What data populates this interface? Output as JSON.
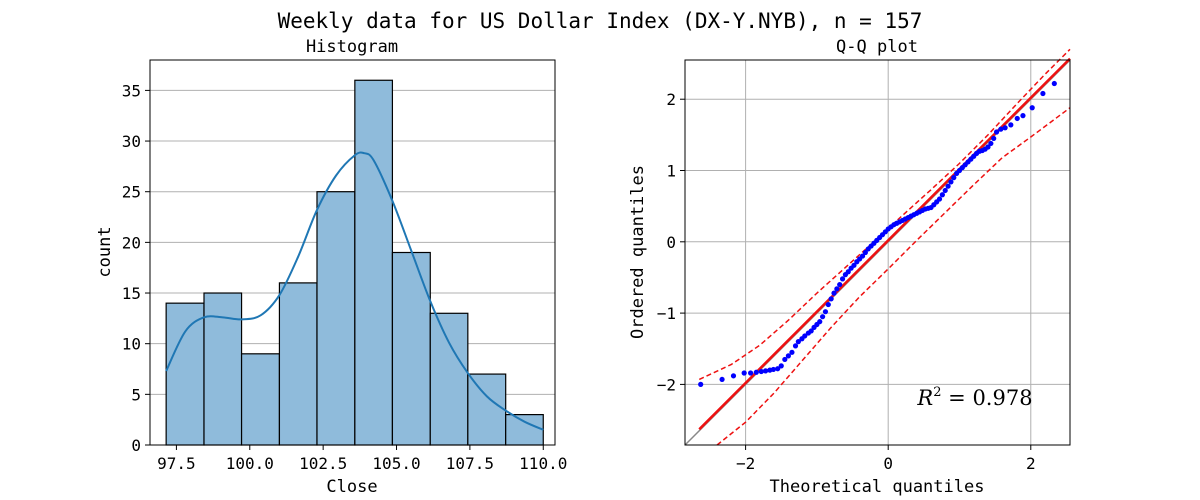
{
  "figure": {
    "title": "Weekly data for US Dollar Index (DX-Y.NYB), n = 157"
  },
  "chart_data": [
    {
      "type": "bar",
      "title": "Histogram",
      "xlabel": "Close",
      "ylabel": "count",
      "bin_edges": [
        97.15,
        98.44,
        99.72,
        101.01,
        102.29,
        103.58,
        104.86,
        106.15,
        107.43,
        108.72,
        110.0
      ],
      "values": [
        14,
        15,
        9,
        16,
        25,
        36,
        19,
        13,
        7,
        3
      ],
      "bar_color": "#8fbbdb",
      "kde_color": "#1f77b4",
      "kde": {
        "x": [
          97.15,
          97.8,
          98.44,
          99.08,
          99.72,
          100.37,
          101.01,
          101.65,
          102.29,
          102.94,
          103.58,
          103.9,
          104.22,
          104.86,
          105.5,
          106.15,
          106.79,
          107.43,
          108.08,
          108.72,
          109.36,
          110.0
        ],
        "y": [
          7.3,
          11.2,
          12.6,
          12.6,
          12.4,
          12.8,
          14.8,
          18.6,
          23.2,
          26.6,
          28.6,
          28.8,
          28.1,
          24.1,
          19.2,
          14.2,
          10.1,
          7.1,
          4.8,
          3.4,
          2.3,
          1.5
        ]
      },
      "xlim": [
        96.6,
        110.4
      ],
      "ylim": [
        0,
        38
      ],
      "xticks": [
        97.5,
        100.0,
        102.5,
        105.0,
        107.5,
        110.0
      ],
      "xtick_labels": [
        "97.5",
        "100.0",
        "102.5",
        "105.0",
        "107.5",
        "110.0"
      ],
      "yticks": [
        0,
        5,
        10,
        15,
        20,
        25,
        30,
        35
      ],
      "ytick_labels": [
        "0",
        "5",
        "10",
        "15",
        "20",
        "25",
        "30",
        "35"
      ],
      "grid": "y"
    },
    {
      "type": "scatter",
      "title": "Q-Q plot",
      "xlabel": "Theoretical quantiles",
      "ylabel": "Ordered quantiles",
      "xlim": [
        -2.85,
        2.55
      ],
      "ylim": [
        -2.85,
        2.55
      ],
      "xticks": [
        -2,
        0,
        2
      ],
      "xtick_labels": [
        "−2",
        "0",
        "2"
      ],
      "yticks": [
        -2,
        -1,
        0,
        1,
        2
      ],
      "ytick_labels": [
        "−2",
        "−1",
        "0",
        "1",
        "2"
      ],
      "grid": "both",
      "point_color": "#0000ff",
      "fit_color": "#ee1111",
      "band_color": "#ee1111",
      "identity_color": "#888888",
      "annotation": "R² = 0.978",
      "annotation_base": "R",
      "annotation_sup": "2",
      "annotation_value": " = 0.978",
      "fit_line": {
        "x": [
          -2.65,
          2.55
        ],
        "y": [
          -2.63,
          2.57
        ]
      },
      "band_upper": {
        "x": [
          -2.65,
          -2.2,
          -1.8,
          -1.4,
          -1.0,
          -0.6,
          -0.2,
          0.2,
          0.6,
          1.0,
          1.4,
          1.8,
          2.2,
          2.55
        ],
        "y": [
          -1.93,
          -1.72,
          -1.45,
          -1.1,
          -0.72,
          -0.36,
          0.0,
          0.37,
          0.73,
          1.1,
          1.5,
          1.93,
          2.35,
          2.7
        ]
      },
      "band_lower": {
        "x": [
          -2.4,
          -2.0,
          -1.6,
          -1.2,
          -0.8,
          -0.4,
          0.0,
          0.4,
          0.8,
          1.2,
          1.6,
          2.0,
          2.55
        ],
        "y": [
          -2.85,
          -2.53,
          -2.12,
          -1.66,
          -1.2,
          -0.77,
          -0.38,
          0.02,
          0.41,
          0.8,
          1.18,
          1.47,
          1.88
        ]
      },
      "points": [
        [
          -2.63,
          -2.0
        ],
        [
          -2.33,
          -1.93
        ],
        [
          -2.17,
          -1.88
        ],
        [
          -2.02,
          -1.84
        ],
        [
          -1.93,
          -1.84
        ],
        [
          -1.85,
          -1.83
        ],
        [
          -1.78,
          -1.82
        ],
        [
          -1.72,
          -1.81
        ],
        [
          -1.66,
          -1.8
        ],
        [
          -1.61,
          -1.79
        ],
        [
          -1.55,
          -1.78
        ],
        [
          -1.5,
          -1.74
        ],
        [
          -1.45,
          -1.65
        ],
        [
          -1.4,
          -1.6
        ],
        [
          -1.35,
          -1.55
        ],
        [
          -1.3,
          -1.46
        ],
        [
          -1.26,
          -1.4
        ],
        [
          -1.21,
          -1.36
        ],
        [
          -1.17,
          -1.32
        ],
        [
          -1.12,
          -1.28
        ],
        [
          -1.08,
          -1.25
        ],
        [
          -1.04,
          -1.2
        ],
        [
          -1.0,
          -1.16
        ],
        [
          -0.96,
          -1.12
        ],
        [
          -0.92,
          -1.05
        ],
        [
          -0.88,
          -0.98
        ],
        [
          -0.84,
          -0.88
        ],
        [
          -0.8,
          -0.8
        ],
        [
          -0.76,
          -0.72
        ],
        [
          -0.72,
          -0.66
        ],
        [
          -0.68,
          -0.6
        ],
        [
          -0.64,
          -0.52
        ],
        [
          -0.6,
          -0.46
        ],
        [
          -0.56,
          -0.42
        ],
        [
          -0.52,
          -0.37
        ],
        [
          -0.48,
          -0.33
        ],
        [
          -0.44,
          -0.28
        ],
        [
          -0.4,
          -0.24
        ],
        [
          -0.36,
          -0.2
        ],
        [
          -0.32,
          -0.15
        ],
        [
          -0.28,
          -0.1
        ],
        [
          -0.24,
          -0.06
        ],
        [
          -0.2,
          -0.02
        ],
        [
          -0.16,
          0.02
        ],
        [
          -0.12,
          0.06
        ],
        [
          -0.08,
          0.1
        ],
        [
          -0.04,
          0.14
        ],
        [
          0.0,
          0.18
        ],
        [
          0.04,
          0.21
        ],
        [
          0.08,
          0.24
        ],
        [
          0.12,
          0.26
        ],
        [
          0.16,
          0.28
        ],
        [
          0.2,
          0.3
        ],
        [
          0.24,
          0.32
        ],
        [
          0.28,
          0.34
        ],
        [
          0.32,
          0.36
        ],
        [
          0.36,
          0.38
        ],
        [
          0.4,
          0.4
        ],
        [
          0.44,
          0.42
        ],
        [
          0.48,
          0.44
        ],
        [
          0.52,
          0.46
        ],
        [
          0.56,
          0.47
        ],
        [
          0.6,
          0.48
        ],
        [
          0.64,
          0.52
        ],
        [
          0.68,
          0.56
        ],
        [
          0.72,
          0.6
        ],
        [
          0.76,
          0.66
        ],
        [
          0.8,
          0.72
        ],
        [
          0.84,
          0.78
        ],
        [
          0.88,
          0.84
        ],
        [
          0.92,
          0.9
        ],
        [
          0.96,
          0.96
        ],
        [
          1.0,
          1.0
        ],
        [
          1.04,
          1.04
        ],
        [
          1.08,
          1.08
        ],
        [
          1.12,
          1.12
        ],
        [
          1.16,
          1.16
        ],
        [
          1.2,
          1.2
        ],
        [
          1.24,
          1.24
        ],
        [
          1.28,
          1.27
        ],
        [
          1.32,
          1.28
        ],
        [
          1.36,
          1.3
        ],
        [
          1.4,
          1.33
        ],
        [
          1.44,
          1.38
        ],
        [
          1.48,
          1.45
        ],
        [
          1.52,
          1.54
        ],
        [
          1.58,
          1.58
        ],
        [
          1.64,
          1.6
        ],
        [
          1.72,
          1.64
        ],
        [
          1.81,
          1.73
        ],
        [
          1.89,
          1.77
        ],
        [
          2.02,
          1.88
        ],
        [
          2.17,
          2.08
        ],
        [
          2.33,
          2.22
        ]
      ]
    }
  ]
}
